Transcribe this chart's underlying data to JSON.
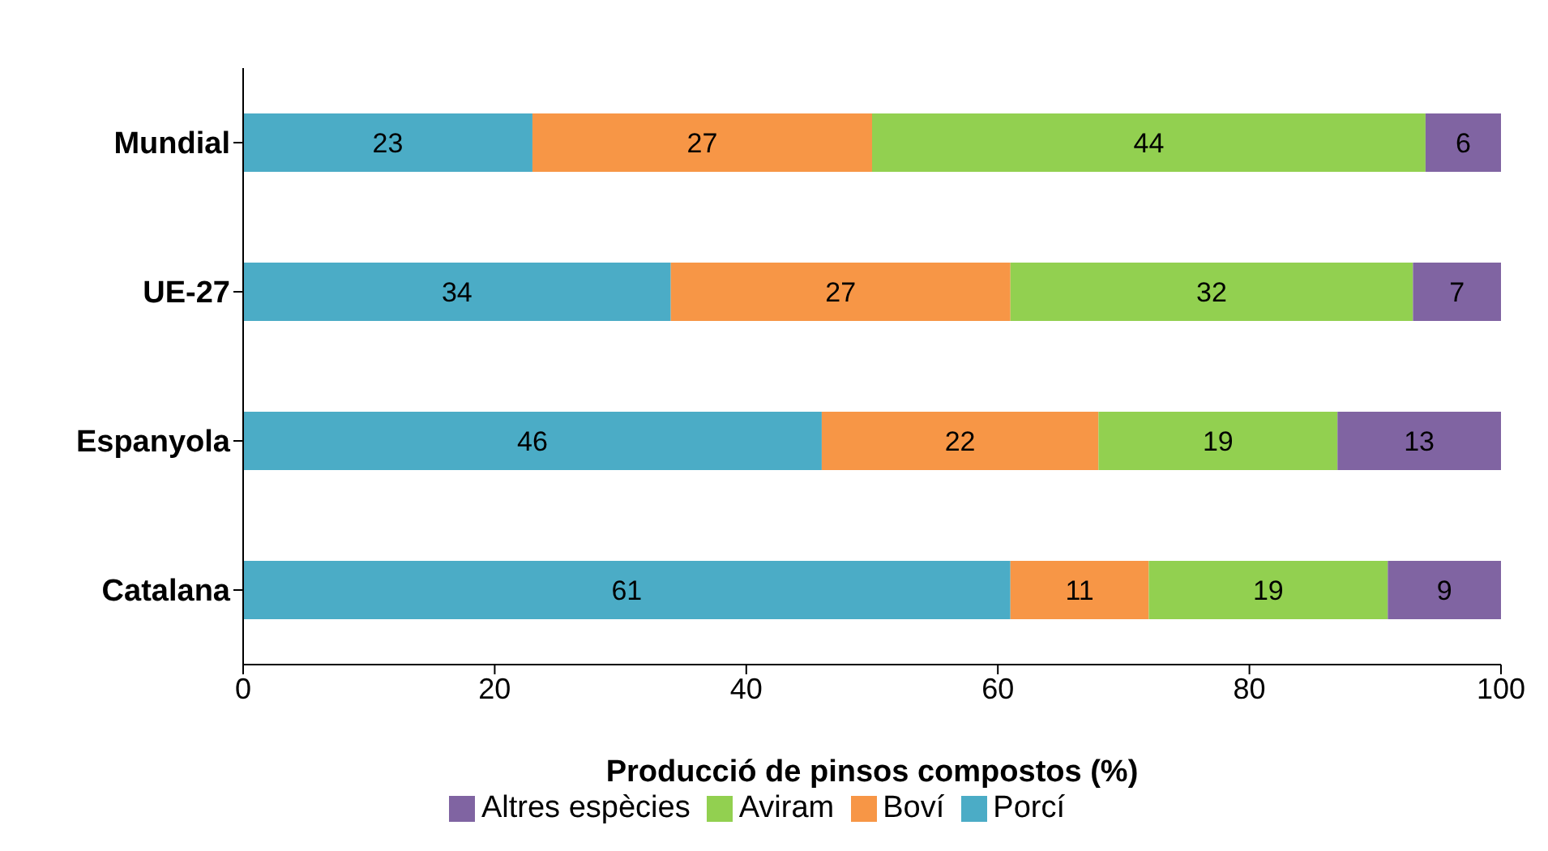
{
  "chart_data": {
    "type": "bar",
    "orientation": "horizontal",
    "stacked": true,
    "xlabel": "Producció de pinsos compostos (%)",
    "categories": [
      "Mundial",
      "UE-27",
      "Espanyola",
      "Catalana"
    ],
    "series": [
      {
        "name": "Porcí",
        "color": "#4bacc6",
        "values": [
          23,
          34,
          46,
          61
        ]
      },
      {
        "name": "Boví",
        "color": "#f79646",
        "values": [
          27,
          27,
          22,
          11
        ]
      },
      {
        "name": "Aviram",
        "color": "#92d050",
        "values": [
          44,
          32,
          19,
          19
        ]
      },
      {
        "name": "Altres espècies",
        "color": "#8064a2",
        "values": [
          6,
          7,
          13,
          9
        ]
      }
    ],
    "xlim": [
      0,
      100
    ],
    "xticks": [
      0,
      20,
      40,
      60,
      80,
      100
    ],
    "data_labels": true,
    "legend": "bottom",
    "grid": false
  }
}
